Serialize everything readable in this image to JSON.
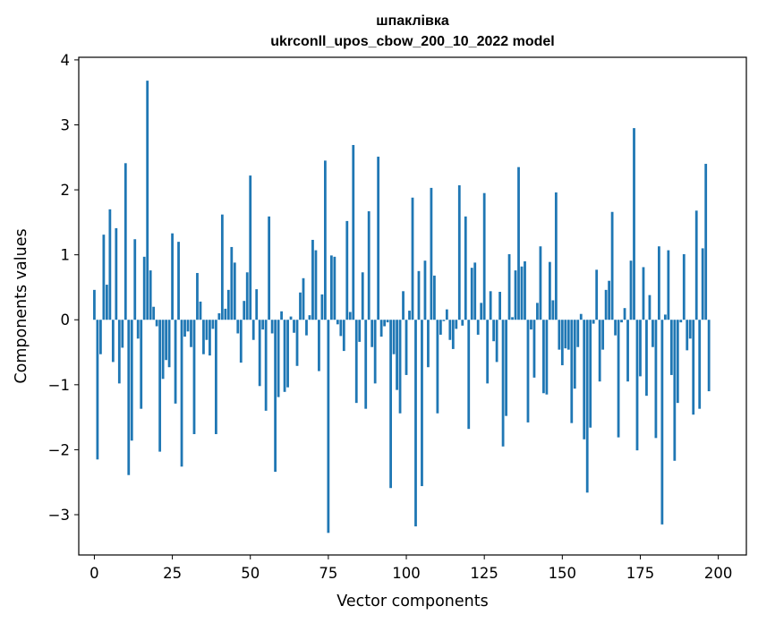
{
  "chart_data": {
    "type": "bar",
    "title": "шпаклівка",
    "subtitle": "ukrconll_upos_cbow_200_10_2022 model",
    "xlabel": "Vector components",
    "ylabel": "Components values",
    "xlim": [
      -5,
      209
    ],
    "ylim": [
      -3.62,
      4.04
    ],
    "xticks": [
      0,
      25,
      50,
      75,
      100,
      125,
      150,
      175,
      200
    ],
    "yticks": [
      -3,
      -2,
      -1,
      0,
      1,
      2,
      3,
      4
    ],
    "xtick_labels": [
      "0",
      "25",
      "50",
      "75",
      "100",
      "125",
      "150",
      "175",
      "200"
    ],
    "ytick_labels": [
      "−3",
      "−2",
      "−1",
      "0",
      "1",
      "2",
      "3",
      "4"
    ],
    "bar_color": "#1f77b4",
    "grid": false,
    "series": [
      {
        "values": [
          0.46,
          -2.15,
          -0.53,
          1.31,
          0.54,
          1.7,
          -0.65,
          1.41,
          -0.98,
          -0.43,
          2.41,
          -2.39,
          -1.86,
          1.24,
          -0.29,
          -1.37,
          0.97,
          3.68,
          0.76,
          0.2,
          -0.1,
          -2.03,
          -0.91,
          -0.62,
          -0.73,
          1.33,
          -1.29,
          1.2,
          -2.26,
          -0.26,
          -0.18,
          -0.42,
          -1.76,
          0.72,
          0.28,
          -0.53,
          -0.31,
          -0.55,
          -0.14,
          -1.76,
          0.1,
          1.62,
          0.17,
          0.46,
          1.12,
          0.88,
          -0.21,
          -0.66,
          0.29,
          0.73,
          2.22,
          -0.31,
          0.47,
          -1.02,
          -0.15,
          -1.4,
          1.59,
          -0.21,
          -2.34,
          -1.19,
          0.13,
          -1.11,
          -1.04,
          0.05,
          -0.2,
          -0.71,
          0.42,
          0.64,
          -0.24,
          0.07,
          1.23,
          1.07,
          -0.79,
          0.39,
          2.45,
          -3.28,
          0.99,
          0.97,
          -0.07,
          -0.25,
          -0.48,
          1.52,
          0.12,
          2.69,
          -1.28,
          -0.34,
          0.73,
          -1.37,
          1.67,
          -0.42,
          -0.98,
          2.51,
          -0.26,
          -0.1,
          -0.04,
          -2.59,
          -0.53,
          -1.08,
          -1.44,
          0.44,
          -0.85,
          0.14,
          1.88,
          -3.18,
          0.75,
          -2.56,
          0.91,
          -0.73,
          2.03,
          0.68,
          -1.44,
          -0.23,
          -0.02,
          0.16,
          -0.31,
          -0.45,
          -0.14,
          2.07,
          -0.09,
          1.59,
          -1.68,
          0.8,
          0.88,
          -0.23,
          0.26,
          1.95,
          -0.98,
          0.44,
          -0.33,
          -0.65,
          0.43,
          -1.95,
          -1.48,
          1.01,
          0.04,
          0.76,
          2.35,
          0.82,
          0.9,
          -1.58,
          -0.15,
          -0.89,
          0.26,
          1.13,
          -1.13,
          -1.15,
          0.89,
          0.3,
          1.96,
          -0.46,
          -0.7,
          -0.44,
          -0.46,
          -1.59,
          -1.06,
          -0.42,
          0.09,
          -1.84,
          -2.66,
          -1.66,
          -0.06,
          0.77,
          -0.95,
          -0.46,
          0.46,
          0.6,
          1.66,
          -0.24,
          -1.81,
          -0.04,
          0.18,
          -0.95,
          0.91,
          2.95,
          -2.01,
          -0.87,
          0.81,
          -1.17,
          0.38,
          -0.42,
          -1.82,
          1.13,
          -3.15,
          0.08,
          1.07,
          -0.85,
          -2.17,
          -1.28,
          -0.04,
          1.01,
          -0.47,
          -0.29,
          -1.46,
          1.68,
          -1.37,
          1.1,
          2.4,
          -1.1
        ]
      }
    ]
  }
}
